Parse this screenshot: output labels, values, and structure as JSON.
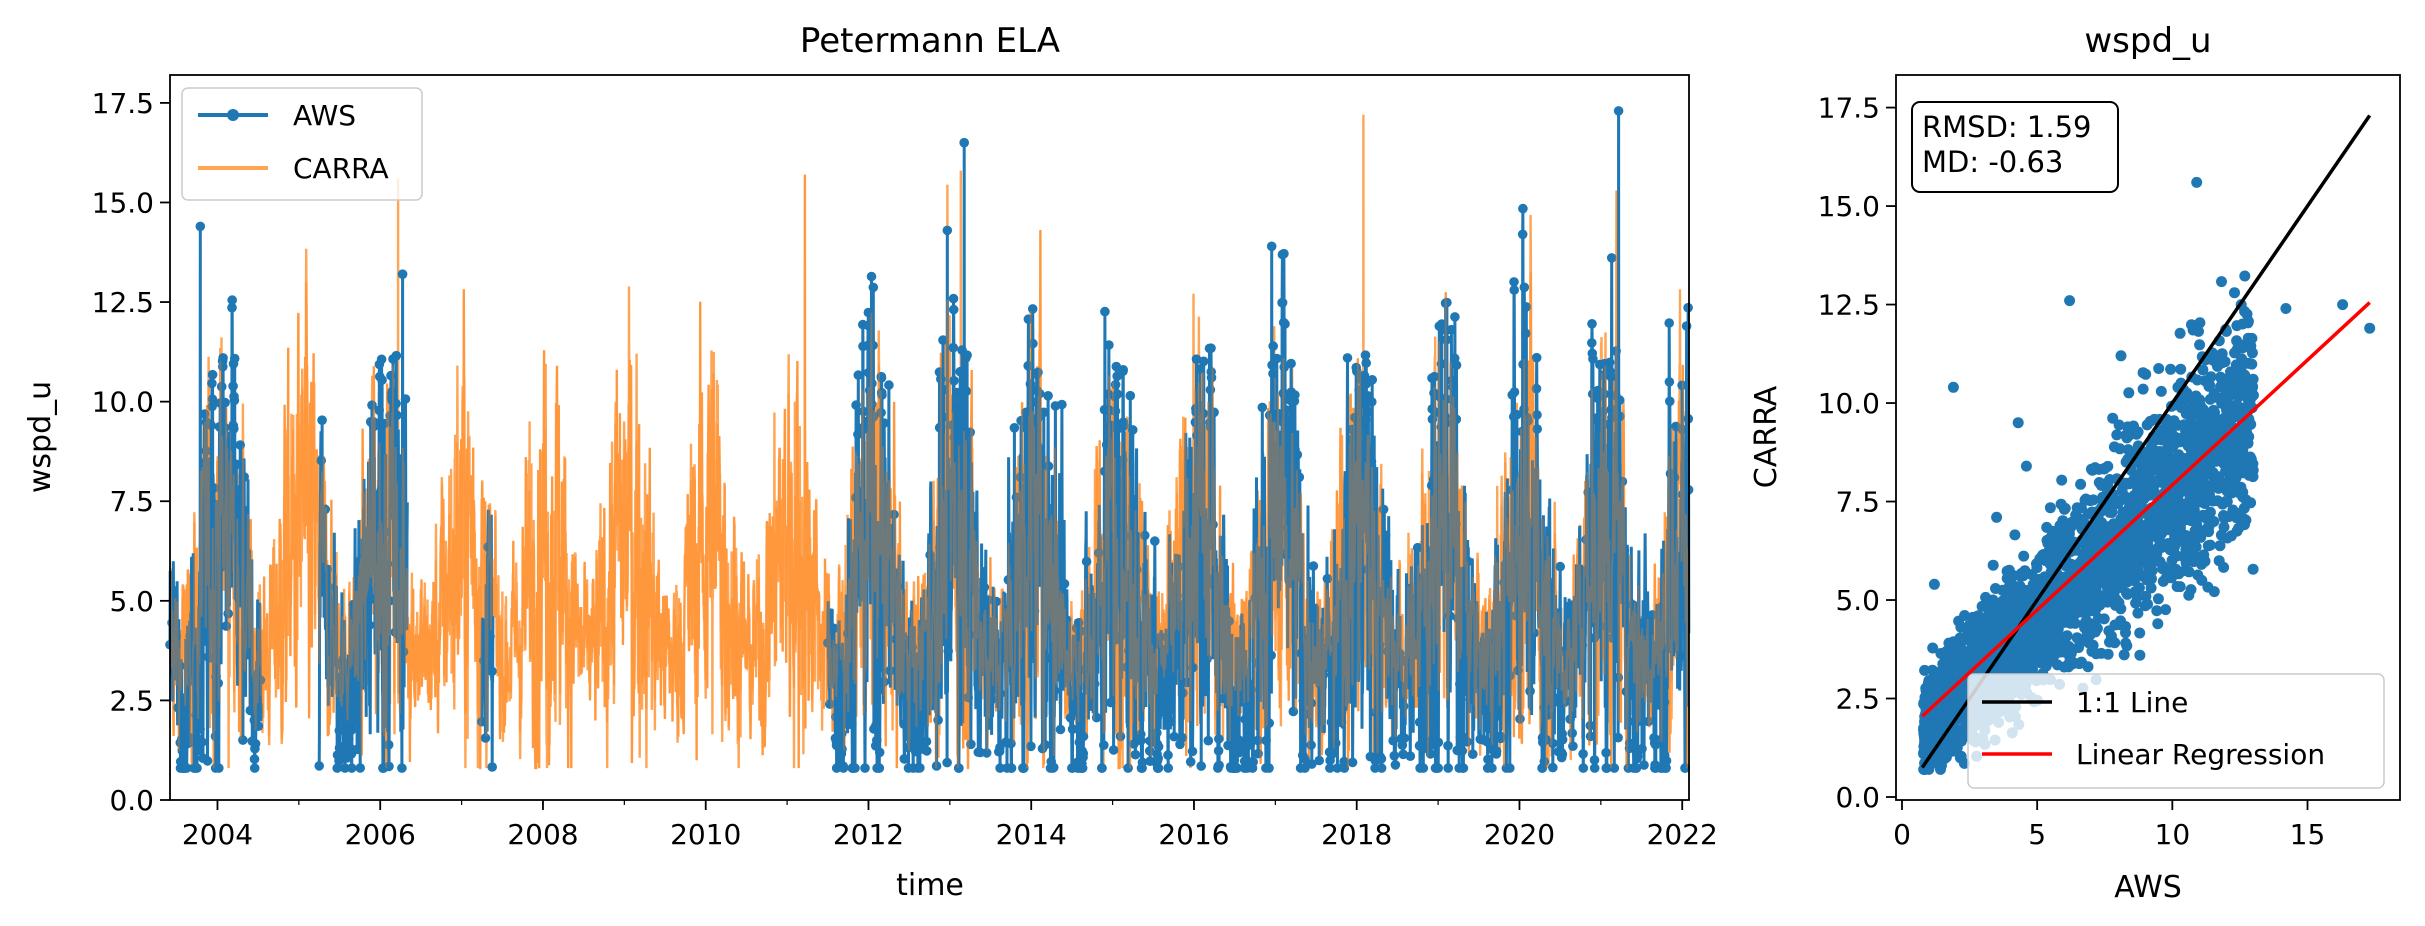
{
  "chart_data": [
    {
      "type": "line",
      "title": "Petermann ELA",
      "xlabel": "time",
      "ylabel": "wspd_u",
      "xlim": [
        "2003-06-01",
        "2022-02-01"
      ],
      "ylim": [
        0,
        18.2
      ],
      "x_ticks": [
        "2004",
        "2006",
        "2008",
        "2010",
        "2012",
        "2014",
        "2016",
        "2018",
        "2020",
        "2022"
      ],
      "y_ticks": [
        "0.0",
        "2.5",
        "5.0",
        "7.5",
        "10.0",
        "12.5",
        "15.0",
        "17.5"
      ],
      "legend": {
        "position": "top-left",
        "entries": [
          "AWS",
          "CARRA"
        ]
      },
      "grid": false,
      "colors": {
        "AWS": "#1f77b4",
        "CARRA": "#ff7f0e"
      },
      "series": [
        {
          "name": "AWS",
          "style": "line-with-markers",
          "segments": [
            {
              "start": "2003-06-01",
              "end": "2004-07-15"
            },
            {
              "start": "2005-04-01",
              "end": "2006-05-01"
            },
            {
              "start": "2007-04-01",
              "end": "2007-05-20"
            },
            {
              "start": "2011-07-01",
              "end": "2022-02-01"
            }
          ],
          "peaks": [
            {
              "x": "2003-10-15",
              "y": 14.4
            },
            {
              "x": "2006-04-10",
              "y": 13.2
            },
            {
              "x": "2012-12-20",
              "y": 14.3
            },
            {
              "x": "2013-03-05",
              "y": 16.5
            },
            {
              "x": "2016-12-15",
              "y": 13.9
            },
            {
              "x": "2020-01-15",
              "y": 14.2
            },
            {
              "x": "2021-03-20",
              "y": 17.3
            },
            {
              "x": "2022-01-20",
              "y": 11.9
            }
          ],
          "typical_range": [
            1.0,
            10.5
          ]
        },
        {
          "name": "CARRA",
          "style": "line",
          "segments": [
            {
              "start": "2003-06-01",
              "end": "2022-02-01"
            }
          ],
          "peaks": [
            {
              "x": "2006-03-20",
              "y": 15.6
            },
            {
              "x": "2011-03-20",
              "y": 15.7
            },
            {
              "x": "2013-02-20",
              "y": 15.8
            },
            {
              "x": "2018-02-01",
              "y": 17.2
            },
            {
              "x": "2021-03-10",
              "y": 15.3
            }
          ],
          "typical_range": [
            1.0,
            10.0
          ]
        }
      ]
    },
    {
      "type": "scatter",
      "title": "wspd_u",
      "xlabel": "AWS",
      "ylabel": "CARRA",
      "xlim": [
        0,
        18.2
      ],
      "ylim": [
        0,
        18.2
      ],
      "x_ticks": [
        "0",
        "5",
        "10",
        "15"
      ],
      "y_ticks": [
        "0.0",
        "2.5",
        "5.0",
        "7.5",
        "10.0",
        "12.5",
        "15.0",
        "17.5"
      ],
      "stats": {
        "rmsd": "RMSD: 1.59",
        "md": "MD: -0.63"
      },
      "legend": {
        "position": "bottom-right",
        "entries": [
          "1:1 Line",
          "Linear Regression"
        ]
      },
      "colors": {
        "points": "#1f77b4",
        "one_to_one": "#000000",
        "regression": "#ff0000"
      },
      "one_to_one_line": {
        "x": [
          0.75,
          17.3
        ],
        "y": [
          0.75,
          17.3
        ]
      },
      "regression_line": {
        "x": [
          0.75,
          17.3
        ],
        "y": [
          2.05,
          12.55
        ]
      },
      "outliers": [
        {
          "x": 1.9,
          "y": 10.4
        },
        {
          "x": 3.5,
          "y": 7.1
        },
        {
          "x": 4.3,
          "y": 9.5
        },
        {
          "x": 6.2,
          "y": 12.6
        },
        {
          "x": 8.1,
          "y": 11.2
        },
        {
          "x": 10.9,
          "y": 15.6
        },
        {
          "x": 12.3,
          "y": 12.8
        },
        {
          "x": 14.2,
          "y": 12.4
        },
        {
          "x": 16.3,
          "y": 12.5
        },
        {
          "x": 17.3,
          "y": 11.9
        },
        {
          "x": 1.2,
          "y": 5.4
        },
        {
          "x": 6.0,
          "y": 3.3
        },
        {
          "x": 4.6,
          "y": 8.4
        },
        {
          "x": 8.8,
          "y": 3.6
        },
        {
          "x": 13.0,
          "y": 10.2
        }
      ]
    }
  ]
}
